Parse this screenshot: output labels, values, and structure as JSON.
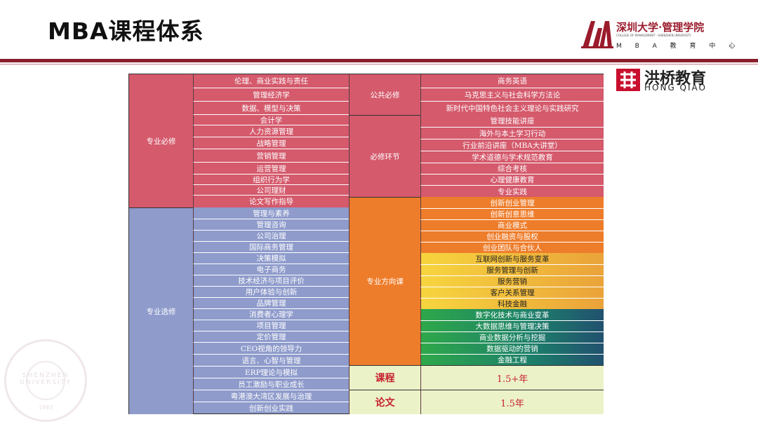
{
  "page": {
    "title": "MBA课程体系"
  },
  "logos": {
    "szu": {
      "name": "深圳大学·管理学院",
      "subtitle": "COLLEGE OF MANAGEMENT · SHENZHEN UNIVERSITY",
      "program": "M B A 教 育 中 心"
    },
    "hongqiao": {
      "name_cn": "洪桥教育",
      "name_en": "HONG QIAO"
    },
    "seal": {
      "text": "SHENZHEN UNIVERSITY",
      "year": "1983"
    }
  },
  "table": {
    "col1": {
      "required": "专业必修",
      "elective": "专业选修"
    },
    "required_courses": [
      "伦理、商业实践与责任",
      "管理经济学",
      "数据、模型与决策",
      "会计学",
      "人力资源管理",
      "战略管理",
      "营销管理",
      "运营管理",
      "组织行为学",
      "公司理财",
      "论文写作指导"
    ],
    "elective_courses": [
      "管理与素养",
      "管理咨询",
      "公司治理",
      "国际商务管理",
      "决策模拟",
      "电子商务",
      "技术经济与项目评价",
      "用户体验与创新",
      "品牌管理",
      "消费者心理学",
      "项目管理",
      "定价管理",
      "CEO视角的领导力",
      "语言、心智与管理",
      "ERP理论与模拟",
      "员工激励与职业成长",
      "粤港澳大湾区发展与治理",
      "创新创业实践"
    ],
    "col3": {
      "public": "公共必修",
      "required_link": "必修环节",
      "direction": "专业方向课",
      "course_label": "课程",
      "thesis_label": "论文"
    },
    "public_courses": [
      "商务英语",
      "马克思主义与社会科学方法论",
      "新时代中国特色社会主义理论与实践研究"
    ],
    "required_link_courses": [
      "管理技能讲座",
      "海外与本土学习行动",
      "行业前沿讲座（MBA大讲堂）",
      "学术道德与学术规范教育",
      "综合考核",
      "心理健康教育",
      "专业实践"
    ],
    "direction_orange": [
      "创新创业管理",
      "创新创意思维",
      "商业模式",
      "创业融资与股权",
      "创业团队与合伙人"
    ],
    "direction_yellow": [
      "互联网创新与服务变革",
      "服务管理与创新",
      "服务营销",
      "客户关系管理",
      "科技金融"
    ],
    "direction_green": [
      "数字化技术与商业变革",
      "大数据思维与管理决策",
      "商业数据分析与挖掘",
      "数据驱动的营销",
      "金融工程"
    ],
    "durations": {
      "course": "1.5+年",
      "thesis": "1.5年"
    }
  }
}
